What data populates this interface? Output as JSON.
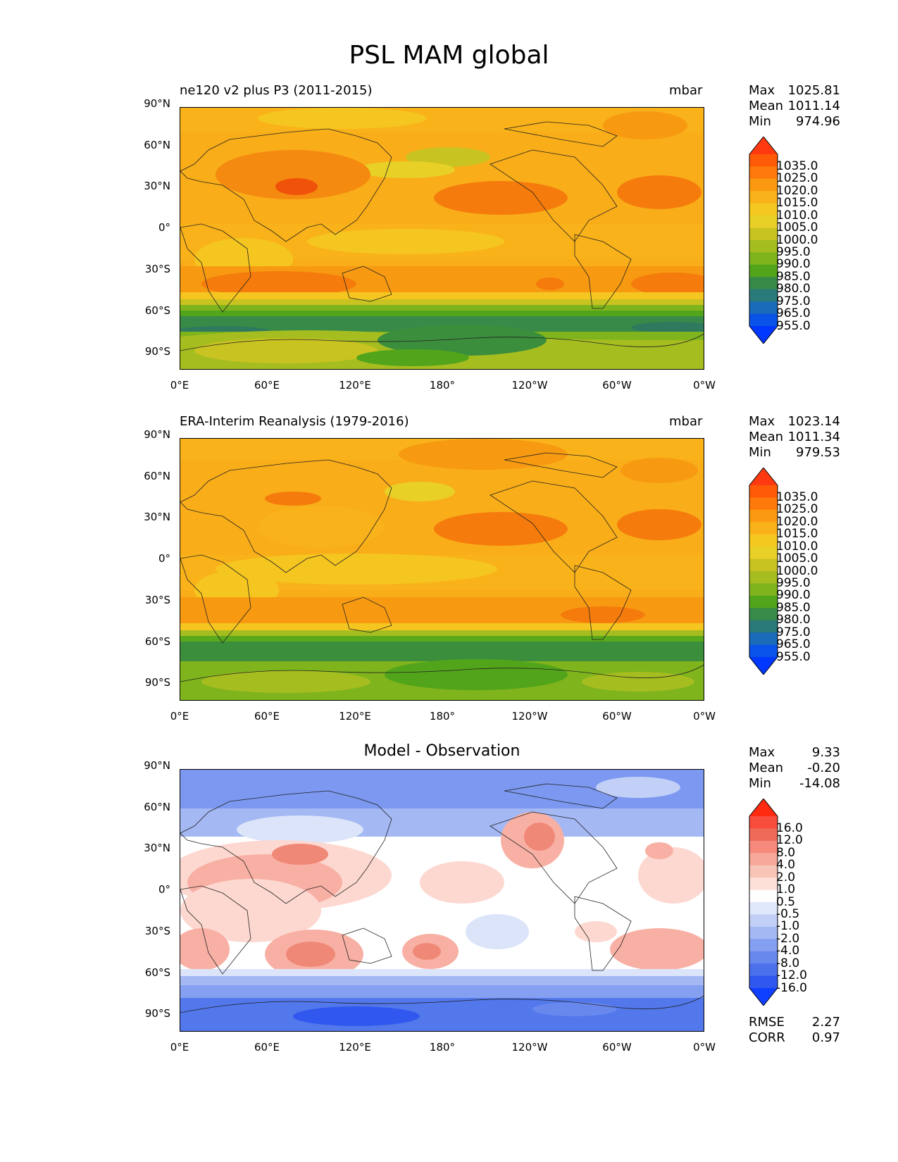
{
  "title": "PSL MAM global",
  "axes": {
    "y_ticks": [
      "90°N",
      "60°N",
      "30°N",
      "0°",
      "30°S",
      "60°S",
      "90°S"
    ],
    "x_ticks": [
      "0°E",
      "60°E",
      "120°E",
      "180°",
      "120°W",
      "60°W",
      "0°W"
    ]
  },
  "panels": [
    {
      "id": "model",
      "title_left": "ne120 v2 plus P3 (2011-2015)",
      "title_right": "mbar",
      "title_center": "",
      "stats": [
        {
          "label": "Max",
          "value": "1025.81"
        },
        {
          "label": "Mean",
          "value": "1011.14"
        },
        {
          "label": "Min",
          "value": "974.96"
        }
      ],
      "colorbar": {
        "labels": [
          "1035.0",
          "1025.0",
          "1020.0",
          "1015.0",
          "1010.0",
          "1005.0",
          "1000.0",
          "995.0",
          "990.0",
          "985.0",
          "980.0",
          "975.0",
          "965.0",
          "955.0"
        ],
        "colors": [
          "#ff3a10",
          "#ff5a08",
          "#ff7a0a",
          "#fb9a12",
          "#f9b219",
          "#f5c820",
          "#e8d027",
          "#c8c321",
          "#a6bd20",
          "#7fb41d",
          "#52a51b",
          "#378a48",
          "#2a7a7a",
          "#1a6bb8",
          "#0a53e8",
          "#0038ff"
        ]
      },
      "map_colors": {
        "ocean": "#f9ad19",
        "high": "#f57c0c",
        "veryhigh": "#f0520a",
        "mid": "#f5c620",
        "low1": "#c8c321",
        "low2": "#7fb41d",
        "low3": "#3a8e3c",
        "low4": "#2f7a5e"
      }
    },
    {
      "id": "obs",
      "title_left": "ERA-Interim Reanalysis (1979-2016)",
      "title_right": "mbar",
      "title_center": "",
      "stats": [
        {
          "label": "Max",
          "value": "1023.14"
        },
        {
          "label": "Mean",
          "value": "1011.34"
        },
        {
          "label": "Min",
          "value": "979.53"
        }
      ],
      "colorbar": {
        "labels": [
          "1035.0",
          "1025.0",
          "1020.0",
          "1015.0",
          "1010.0",
          "1005.0",
          "1000.0",
          "995.0",
          "990.0",
          "985.0",
          "980.0",
          "975.0",
          "965.0",
          "955.0"
        ],
        "colors": [
          "#ff3a10",
          "#ff5a08",
          "#ff7a0a",
          "#fb9a12",
          "#f9b219",
          "#f5c820",
          "#e8d027",
          "#c8c321",
          "#a6bd20",
          "#7fb41d",
          "#52a51b",
          "#378a48",
          "#2a7a7a",
          "#1a6bb8",
          "#0a53e8",
          "#0038ff"
        ]
      },
      "map_colors": {
        "ocean": "#f9ad19",
        "high": "#f57c0c",
        "veryhigh": "#f0520a",
        "mid": "#f5c620",
        "low1": "#a6bd20",
        "low2": "#5aa81b",
        "low3": "#3a8e3c",
        "low4": "#2f7a5e"
      }
    },
    {
      "id": "diff",
      "title_left": "",
      "title_right": "",
      "title_center": "Model - Observation",
      "stats": [
        {
          "label": "Max",
          "value": "9.33"
        },
        {
          "label": "Mean",
          "value": "-0.20"
        },
        {
          "label": "Min",
          "value": "-14.08"
        }
      ],
      "extra_stats": [
        {
          "label": "RMSE",
          "value": "2.27"
        },
        {
          "label": "CORR",
          "value": "0.97"
        }
      ],
      "colorbar": {
        "labels": [
          "16.0",
          "12.0",
          "8.0",
          "4.0",
          "2.0",
          "1.0",
          "0.5",
          "-0.5",
          "-1.0",
          "-2.0",
          "-4.0",
          "-8.0",
          "-12.0",
          "-16.0"
        ],
        "colors": [
          "#ff2a10",
          "#f84c3c",
          "#f06a5a",
          "#f58a7c",
          "#f7a89a",
          "#f9c4b8",
          "#fde0d8",
          "#ffffff",
          "#e0e8fb",
          "#c2d0f7",
          "#a4b8f4",
          "#86a0f1",
          "#6888ee",
          "#4c70ec",
          "#3058ee",
          "#1040ff"
        ]
      },
      "map_colors": {
        "ocean": "#ffffff",
        "pos1": "#fdd8d0",
        "pos2": "#f8b0a4",
        "pos3": "#f08878",
        "neg1": "#dce4fa",
        "neg2": "#a4b8f4",
        "neg3": "#7c98f0",
        "neg4": "#5278ec"
      }
    }
  ]
}
